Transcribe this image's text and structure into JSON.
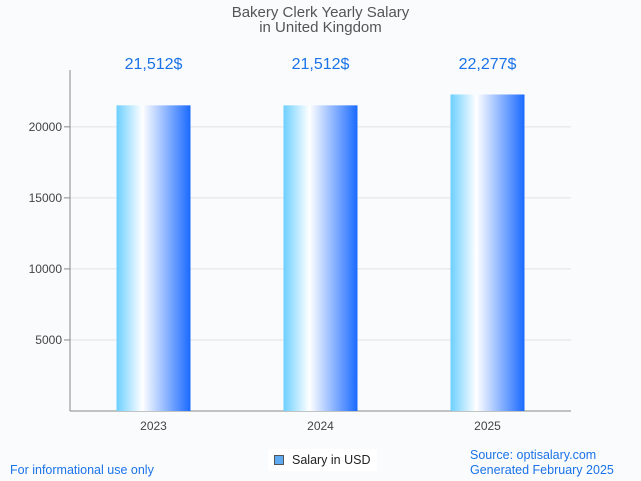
{
  "chart_data": {
    "type": "bar",
    "title": "Bakery Clerk Yearly Salary",
    "subtitle": "in United Kingdom",
    "categories": [
      "2023",
      "2024",
      "2025"
    ],
    "values": [
      21512,
      21512,
      22277
    ],
    "data_labels": [
      "21,512$",
      "21,512$",
      "22,277$"
    ],
    "yticks": [
      5000,
      10000,
      15000,
      20000
    ],
    "ytick_labels": [
      "5000",
      "10000",
      "15000",
      "20000"
    ],
    "ylim": [
      0,
      24000
    ],
    "xlabel": "",
    "ylabel": "",
    "grid": true,
    "legend": {
      "label": "Salary in USD",
      "placement": "bottom-center"
    },
    "colors": {
      "bar_light": "#6ccfff",
      "bar_mid": "#ffffff",
      "bar_dark": "#1a6aff",
      "label": "#1a73e8"
    }
  },
  "footer": {
    "disclaimer": "For informational use only",
    "source": "Source: optisalary.com",
    "generated": "Generated February 2025"
  }
}
